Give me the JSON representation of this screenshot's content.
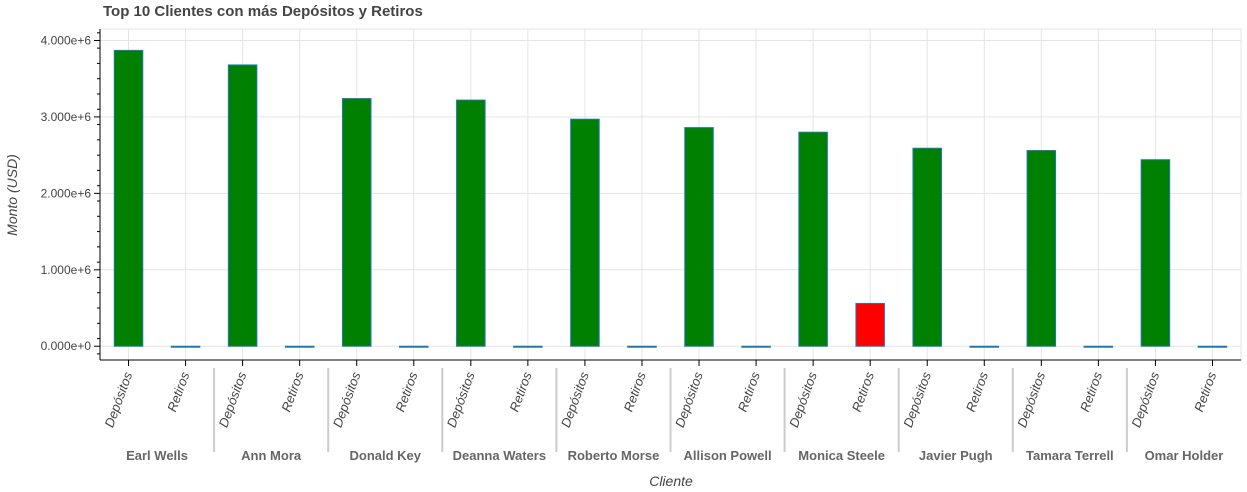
{
  "chart_data": {
    "type": "bar",
    "title": "Top 10 Clientes con más Depósitos y Retiros",
    "xlabel": "Cliente",
    "ylabel": "Monto (USD)",
    "categories": [
      "Earl Wells",
      "Ann Mora",
      "Donald Key",
      "Deanna Waters",
      "Roberto Morse",
      "Allison Powell",
      "Monica Steele",
      "Javier Pugh",
      "Tamara Terrell",
      "Omar Holder"
    ],
    "subcategories": [
      "Depósitos",
      "Retiros"
    ],
    "series": [
      {
        "name": "Depósitos",
        "values": [
          3870000,
          3680000,
          3240000,
          3220000,
          2970000,
          2860000,
          2800000,
          2590000,
          2560000,
          2440000
        ]
      },
      {
        "name": "Retiros",
        "values": [
          0,
          0,
          0,
          0,
          0,
          0,
          560000,
          0,
          0,
          0
        ]
      }
    ],
    "bar_colors": [
      [
        "#008000",
        "#008000"
      ],
      [
        "#008000",
        "#008000"
      ],
      [
        "#008000",
        "#008000"
      ],
      [
        "#008000",
        "#008000"
      ],
      [
        "#008000",
        "#008000"
      ],
      [
        "#008000",
        "#008000"
      ],
      [
        "#008000",
        "#ff0000"
      ],
      [
        "#008000",
        "#008000"
      ],
      [
        "#008000",
        "#008000"
      ],
      [
        "#008000",
        "#008000"
      ]
    ],
    "outline_color": "#1f77b4",
    "ylim": [
      -180000,
      4150000
    ],
    "yticks": [
      {
        "value": 0,
        "label": "0.000e+0"
      },
      {
        "value": 1000000,
        "label": "1.000e+6"
      },
      {
        "value": 2000000,
        "label": "2.000e+6"
      },
      {
        "value": 3000000,
        "label": "3.000e+6"
      },
      {
        "value": 4000000,
        "label": "4.000e+6"
      }
    ],
    "grid": true
  }
}
